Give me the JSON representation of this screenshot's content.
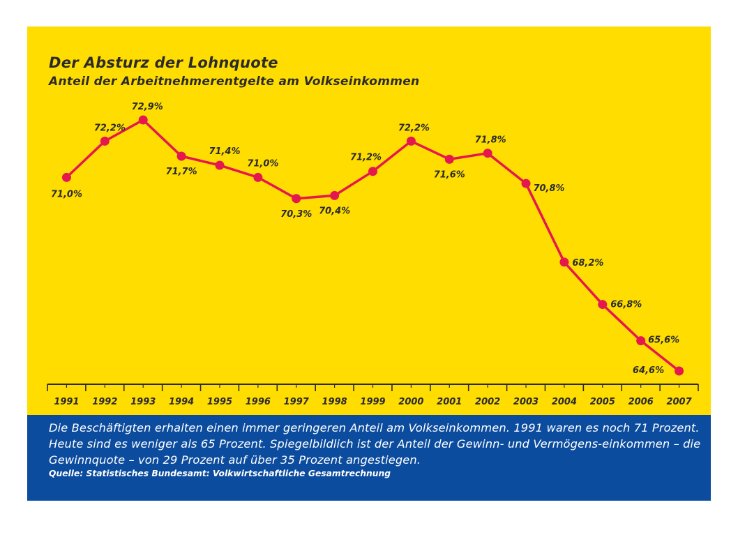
{
  "colors": {
    "background": "#ffdd00",
    "footer": "#0c4c9e",
    "line": "#e5174f",
    "text": "#2b2b2b",
    "footer_text": "#ffffff"
  },
  "chart_data": {
    "type": "line",
    "title": "Der Absturz der Lohnquote",
    "subtitle": "Anteil der Arbeitnehmerentgelte am Volkseinkommen",
    "xlabel": "",
    "ylabel": "",
    "grid": false,
    "x": [
      "1991",
      "1992",
      "1993",
      "1994",
      "1995",
      "1996",
      "1997",
      "1998",
      "1999",
      "2000",
      "2001",
      "2002",
      "2003",
      "2004",
      "2005",
      "2006",
      "2007"
    ],
    "series": [
      {
        "values": [
          71.0,
          72.2,
          72.9,
          71.7,
          71.4,
          71.0,
          70.3,
          70.4,
          71.2,
          72.2,
          71.6,
          71.8,
          70.8,
          68.2,
          66.8,
          65.6,
          64.6
        ],
        "labels": [
          "71,0%",
          "72,2%",
          "72,9%",
          "71,7%",
          "71,4%",
          "71,0%",
          "70,3%",
          "70,4%",
          "71,2%",
          "72,2%",
          "71,6%",
          "71,8%",
          "70,8%",
          "68,2%",
          "66,8%",
          "65,6%",
          "64,6%"
        ]
      }
    ]
  },
  "footer": {
    "description": "Die Beschäftigten erhalten einen immer geringeren Anteil am Volkseinkommen. 1991 waren es noch 71 Prozent. Heute sind es weniger als 65 Prozent. Spiegelbildlich ist der Anteil der Gewinn- und Vermögens-einkommen – die Gewinnquote – von 29 Prozent auf über 35 Prozent angestiegen.",
    "source": "Quelle: Statistisches Bundesamt: Volkwirtschaftliche Gesamtrechnung"
  }
}
